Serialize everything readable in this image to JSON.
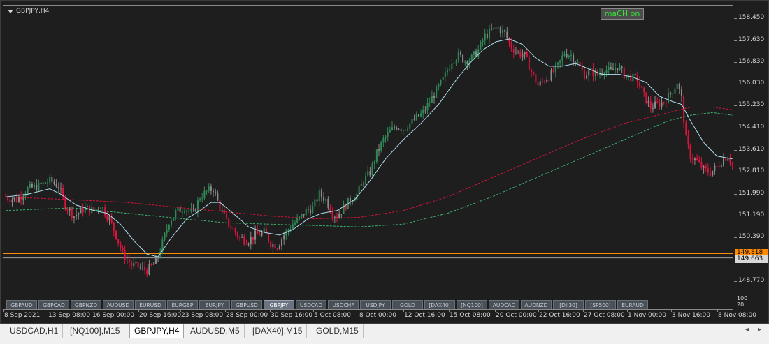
{
  "window": {
    "symbol_title": "GBPJPY,H4",
    "mach_button_label": "maCH on"
  },
  "colors": {
    "background": "#1e1e1e",
    "bull_candle": "#2e8b57",
    "bear_candle": "#dc143c",
    "neutral_candle": "#8c8c8c",
    "fast_ma": "#b0e0f0",
    "slow_ma_red": "#dc143c",
    "slow_ma_green": "#3cb371",
    "orange_line": "#ff8c00",
    "grey_line": "#a0a0a0"
  },
  "price_axis": {
    "labels": [
      "158.450",
      "157.630",
      "156.830",
      "156.030",
      "155.230",
      "154.410",
      "153.610",
      "152.810",
      "151.990",
      "151.190",
      "150.390",
      "148.770"
    ],
    "orange_tag": "149.818",
    "grey_tag": "149.663"
  },
  "indicator_scale": {
    "top": "100",
    "bottom": "20"
  },
  "time_axis": {
    "labels": [
      "8 Sep 2021",
      "13 Sep 08:00",
      "16 Sep 00:00",
      "20 Sep 16:00",
      "23 Sep 08:00",
      "28 Sep 00:00",
      "30 Sep 16:00",
      "5 Oct 08:00",
      "8 Oct 00:00",
      "12 Oct 16:00",
      "15 Oct 08:00",
      "20 Oct 00:00",
      "22 Oct 16:00",
      "27 Oct 08:00",
      "1 Nov 00:00",
      "3 Nov 16:00",
      "8 Nov 08:00"
    ]
  },
  "symbol_buttons": [
    {
      "label": "GBPAUD",
      "active": false
    },
    {
      "label": "GBPCAD",
      "active": false
    },
    {
      "label": "GBPNZD",
      "active": false
    },
    {
      "label": "AUDUSD",
      "active": false
    },
    {
      "label": "EURUSD",
      "active": false
    },
    {
      "label": "EURGBP",
      "active": false
    },
    {
      "label": "EURJPY",
      "active": false
    },
    {
      "label": "GBPUSD",
      "active": false
    },
    {
      "label": "GBPJPY",
      "active": true
    },
    {
      "label": "USDCAD",
      "active": false
    },
    {
      "label": "USDCHF",
      "active": false
    },
    {
      "label": "USDJPY",
      "active": false
    },
    {
      "label": "GOLD",
      "active": false
    },
    {
      "label": "[DAX40]",
      "active": false
    },
    {
      "label": "[NQ100]",
      "active": false
    },
    {
      "label": "AUDCAD",
      "active": false
    },
    {
      "label": "AUDNZD",
      "active": false
    },
    {
      "label": "[DJI30]",
      "active": false
    },
    {
      "label": "[SP500]",
      "active": false
    },
    {
      "label": "EURAUD",
      "active": false
    }
  ],
  "tabs": [
    {
      "label": "USDCAD,H1",
      "active": false
    },
    {
      "label": "[NQ100],M15",
      "active": false
    },
    {
      "label": "GBPJPY,H4",
      "active": true
    },
    {
      "label": "AUDUSD,M5",
      "active": false
    },
    {
      "label": "[DAX40],M15",
      "active": false
    },
    {
      "label": "GOLD,M15",
      "active": false
    }
  ],
  "tab_nav": {
    "prev_icon": "◂",
    "next_icon": "▸"
  },
  "chart_data": {
    "type": "candlestick",
    "ylim": [
      148.55,
      158.62
    ],
    "anchors_close": [
      [
        0,
        151.9
      ],
      [
        5,
        151.8
      ],
      [
        10,
        152.2
      ],
      [
        15,
        152.3
      ],
      [
        20,
        152.5
      ],
      [
        24,
        152.3
      ],
      [
        27,
        151.6
      ],
      [
        31,
        151.2
      ],
      [
        36,
        151.5
      ],
      [
        40,
        151.4
      ],
      [
        43,
        151.6
      ],
      [
        47,
        151.1
      ],
      [
        50,
        150.5
      ],
      [
        53,
        149.8
      ],
      [
        57,
        149.4
      ],
      [
        61,
        149.3
      ],
      [
        64,
        149.2
      ],
      [
        68,
        149.5
      ],
      [
        71,
        150.2
      ],
      [
        74,
        151.0
      ],
      [
        78,
        151.4
      ],
      [
        81,
        151.5
      ],
      [
        85,
        151.3
      ],
      [
        88,
        151.9
      ],
      [
        91,
        152.1
      ],
      [
        94,
        152.2
      ],
      [
        97,
        151.5
      ],
      [
        100,
        151.0
      ],
      [
        103,
        150.7
      ],
      [
        106,
        150.4
      ],
      [
        110,
        150.3
      ],
      [
        113,
        150.5
      ],
      [
        117,
        150.6
      ],
      [
        120,
        150.2
      ],
      [
        123,
        150.1
      ],
      [
        126,
        150.5
      ],
      [
        130,
        150.9
      ],
      [
        133,
        151.1
      ],
      [
        136,
        151.4
      ],
      [
        139,
        151.5
      ],
      [
        142,
        152.0
      ],
      [
        145,
        151.8
      ],
      [
        148,
        151.3
      ],
      [
        150,
        151.2
      ],
      [
        153,
        151.5
      ],
      [
        156,
        151.8
      ],
      [
        159,
        152.0
      ],
      [
        162,
        152.5
      ],
      [
        165,
        152.8
      ],
      [
        168,
        153.5
      ],
      [
        171,
        154.0
      ],
      [
        174,
        154.3
      ],
      [
        177,
        154.5
      ],
      [
        180,
        154.4
      ],
      [
        183,
        154.6
      ],
      [
        186,
        154.8
      ],
      [
        189,
        155.0
      ],
      [
        192,
        155.4
      ],
      [
        195,
        155.8
      ],
      [
        198,
        156.2
      ],
      [
        202,
        156.9
      ],
      [
        205,
        157.1
      ],
      [
        208,
        156.9
      ],
      [
        211,
        157.0
      ],
      [
        214,
        157.3
      ],
      [
        217,
        157.8
      ],
      [
        220,
        158.0
      ],
      [
        223,
        158.1
      ],
      [
        226,
        157.9
      ],
      [
        229,
        157.4
      ],
      [
        232,
        157.2
      ],
      [
        235,
        157.1
      ],
      [
        238,
        156.5
      ],
      [
        241,
        156.0
      ],
      [
        244,
        156.2
      ],
      [
        247,
        156.4
      ],
      [
        250,
        156.7
      ],
      [
        253,
        157.2
      ],
      [
        256,
        157.1
      ],
      [
        259,
        156.8
      ],
      [
        262,
        156.4
      ],
      [
        265,
        156.5
      ],
      [
        268,
        156.4
      ],
      [
        271,
        156.6
      ],
      [
        274,
        156.5
      ],
      [
        277,
        156.7
      ],
      [
        280,
        156.4
      ],
      [
        283,
        156.3
      ],
      [
        286,
        156.2
      ],
      [
        289,
        155.6
      ],
      [
        292,
        155.2
      ],
      [
        295,
        155.3
      ],
      [
        298,
        155.4
      ],
      [
        301,
        155.7
      ],
      [
        304,
        156.1
      ],
      [
        306,
        155.5
      ],
      [
        308,
        154.0
      ],
      [
        310,
        153.4
      ],
      [
        313,
        153.2
      ],
      [
        316,
        152.9
      ],
      [
        319,
        152.8
      ],
      [
        322,
        153.0
      ],
      [
        325,
        153.3
      ],
      [
        327,
        153.4
      ],
      [
        329,
        153.1
      ]
    ],
    "fast_ma": [
      [
        0,
        151.9
      ],
      [
        10,
        152.0
      ],
      [
        20,
        152.2
      ],
      [
        25,
        152.0
      ],
      [
        32,
        151.6
      ],
      [
        40,
        151.4
      ],
      [
        46,
        151.3
      ],
      [
        52,
        150.9
      ],
      [
        58,
        150.3
      ],
      [
        64,
        149.8
      ],
      [
        69,
        149.7
      ],
      [
        75,
        150.4
      ],
      [
        82,
        151.1
      ],
      [
        88,
        151.4
      ],
      [
        93,
        151.7
      ],
      [
        97,
        151.7
      ],
      [
        103,
        151.3
      ],
      [
        110,
        150.8
      ],
      [
        117,
        150.6
      ],
      [
        124,
        150.5
      ],
      [
        130,
        150.7
      ],
      [
        137,
        151.1
      ],
      [
        143,
        151.3
      ],
      [
        150,
        151.4
      ],
      [
        158,
        151.8
      ],
      [
        165,
        152.5
      ],
      [
        172,
        153.3
      ],
      [
        180,
        154.0
      ],
      [
        188,
        154.6
      ],
      [
        196,
        155.3
      ],
      [
        204,
        156.2
      ],
      [
        210,
        156.8
      ],
      [
        216,
        157.3
      ],
      [
        222,
        157.6
      ],
      [
        228,
        157.7
      ],
      [
        234,
        157.5
      ],
      [
        240,
        157.0
      ],
      [
        246,
        156.7
      ],
      [
        252,
        156.7
      ],
      [
        258,
        156.8
      ],
      [
        264,
        156.6
      ],
      [
        270,
        156.4
      ],
      [
        278,
        156.4
      ],
      [
        284,
        156.3
      ],
      [
        290,
        156.1
      ],
      [
        296,
        155.6
      ],
      [
        302,
        155.4
      ],
      [
        306,
        155.3
      ],
      [
        310,
        154.7
      ],
      [
        316,
        153.9
      ],
      [
        322,
        153.4
      ],
      [
        329,
        153.3
      ]
    ],
    "slow_ma_red": [
      [
        0,
        151.9
      ],
      [
        30,
        151.8
      ],
      [
        55,
        151.7
      ],
      [
        80,
        151.5
      ],
      [
        100,
        151.35
      ],
      [
        120,
        151.2
      ],
      [
        140,
        151.1
      ],
      [
        160,
        151.15
      ],
      [
        180,
        151.4
      ],
      [
        200,
        151.9
      ],
      [
        220,
        152.6
      ],
      [
        240,
        153.3
      ],
      [
        260,
        154.0
      ],
      [
        280,
        154.6
      ],
      [
        300,
        155.0
      ],
      [
        310,
        155.2
      ],
      [
        320,
        155.2
      ],
      [
        329,
        155.1
      ]
    ],
    "slow_ma_green": [
      [
        0,
        151.4
      ],
      [
        30,
        151.5
      ],
      [
        55,
        151.3
      ],
      [
        80,
        151.1
      ],
      [
        100,
        150.95
      ],
      [
        120,
        150.9
      ],
      [
        140,
        150.85
      ],
      [
        160,
        150.8
      ],
      [
        180,
        150.9
      ],
      [
        200,
        151.3
      ],
      [
        220,
        151.9
      ],
      [
        240,
        152.6
      ],
      [
        260,
        153.3
      ],
      [
        280,
        154.0
      ],
      [
        300,
        154.7
      ],
      [
        310,
        154.9
      ],
      [
        320,
        155.0
      ],
      [
        329,
        154.9
      ]
    ],
    "horizontal_lines": [
      149.818,
      149.663
    ]
  }
}
